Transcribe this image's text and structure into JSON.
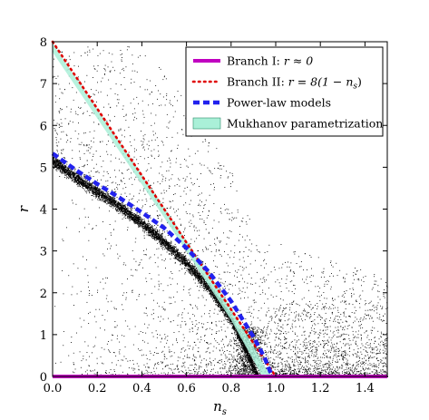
{
  "chart_data": {
    "type": "scatter",
    "title": "",
    "xlabel": "n",
    "xlabel_sub": "s",
    "ylabel": "r",
    "xlim": [
      0.0,
      1.5
    ],
    "ylim": [
      0,
      8
    ],
    "xticks": [
      "0.0",
      "0.2",
      "0.4",
      "0.6",
      "0.8",
      "1.0",
      "1.2",
      "1.4"
    ],
    "xtick_values": [
      0.0,
      0.2,
      0.4,
      0.6,
      0.8,
      1.0,
      1.2,
      1.4
    ],
    "yticks": [
      "0",
      "1",
      "2",
      "3",
      "4",
      "5",
      "6",
      "7",
      "8"
    ],
    "ytick_values": [
      0,
      1,
      2,
      3,
      4,
      5,
      6,
      7,
      8
    ],
    "grid": false,
    "legend_position": "top-right",
    "scatter": {
      "description_color": "#000000",
      "dense_band": [
        [
          0.0,
          5.2
        ],
        [
          0.1,
          4.8
        ],
        [
          0.2,
          4.45
        ],
        [
          0.3,
          4.1
        ],
        [
          0.4,
          3.7
        ],
        [
          0.5,
          3.25
        ],
        [
          0.6,
          2.75
        ],
        [
          0.7,
          2.15
        ],
        [
          0.8,
          1.4
        ],
        [
          0.88,
          0.5
        ],
        [
          0.92,
          0.0
        ]
      ]
    },
    "series": [
      {
        "name": "Branch I: r ≈ 0",
        "style": "solid",
        "color": "#c000c0",
        "x": [
          0.0,
          1.5
        ],
        "y": [
          0.0,
          0.0
        ]
      },
      {
        "name": "Branch II: r = 8(1 − n_s)",
        "style": "dotted",
        "color": "#e00000",
        "x": [
          0.0,
          1.0
        ],
        "y": [
          8.0,
          0.0
        ]
      },
      {
        "name": "Power-law models",
        "style": "dashed",
        "color": "#2222ee",
        "x": [
          0.0,
          0.1,
          0.2,
          0.3,
          0.4,
          0.5,
          0.6,
          0.7,
          0.8,
          0.9,
          0.95,
          0.98
        ],
        "y": [
          5.33,
          4.95,
          4.6,
          4.27,
          3.92,
          3.55,
          3.07,
          2.5,
          1.8,
          0.95,
          0.45,
          0.05
        ]
      },
      {
        "name": "Mukhanov parametrization",
        "style": "band",
        "color": "#aaf0d8",
        "upper": [
          [
            0.0,
            7.95
          ],
          [
            0.5,
            4.05
          ],
          [
            0.8,
            1.65
          ],
          [
            0.96,
            0.15
          ],
          [
            0.99,
            0.0
          ]
        ],
        "lower": [
          [
            0.0,
            7.75
          ],
          [
            0.5,
            3.8
          ],
          [
            0.8,
            1.35
          ],
          [
            0.93,
            0.1
          ],
          [
            0.94,
            0.0
          ]
        ]
      }
    ],
    "legend": [
      {
        "label_prefix": "Branch I: ",
        "label_math": "r ≈ 0"
      },
      {
        "label_prefix": "Branch II: ",
        "label_math": "r = 8(1 − n",
        "label_math_sub": "s",
        "label_math_end": ")"
      },
      {
        "label_prefix": "Power-law models",
        "label_math": ""
      },
      {
        "label_prefix": "Mukhanov parametrization",
        "label_math": ""
      }
    ]
  }
}
